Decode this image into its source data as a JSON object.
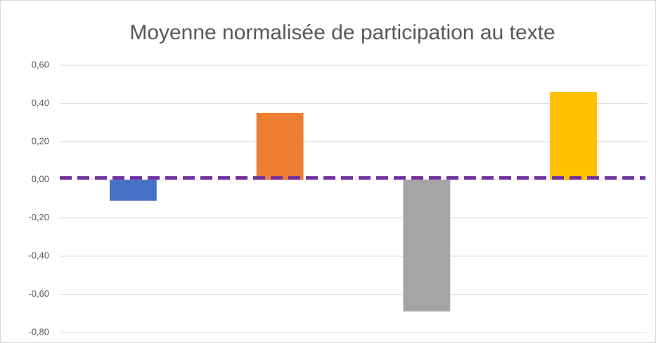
{
  "chart_data": {
    "type": "bar",
    "title": "Moyenne normalisée de participation au texte",
    "categories": [
      null,
      null,
      null,
      null
    ],
    "values": [
      -0.11,
      0.35,
      -0.69,
      0.46
    ],
    "colors": [
      "#4472c4",
      "#ed7d31",
      "#a5a5a5",
      "#ffc000"
    ],
    "ylim": [
      -0.8,
      0.6
    ],
    "yticks": [
      {
        "value": 0.6,
        "label": "0,60"
      },
      {
        "value": 0.4,
        "label": "0,40"
      },
      {
        "value": 0.2,
        "label": "0,20"
      },
      {
        "value": 0,
        "label": "0,00"
      },
      {
        "value": -0.2,
        "label": "-0,20"
      },
      {
        "value": -0.4,
        "label": "-0,40"
      },
      {
        "value": -0.6,
        "label": "-0,60"
      },
      {
        "value": -0.8,
        "label": "-0,80"
      }
    ],
    "grid": true,
    "reference_line": {
      "value": 0.01,
      "color": "#7030a0"
    }
  }
}
